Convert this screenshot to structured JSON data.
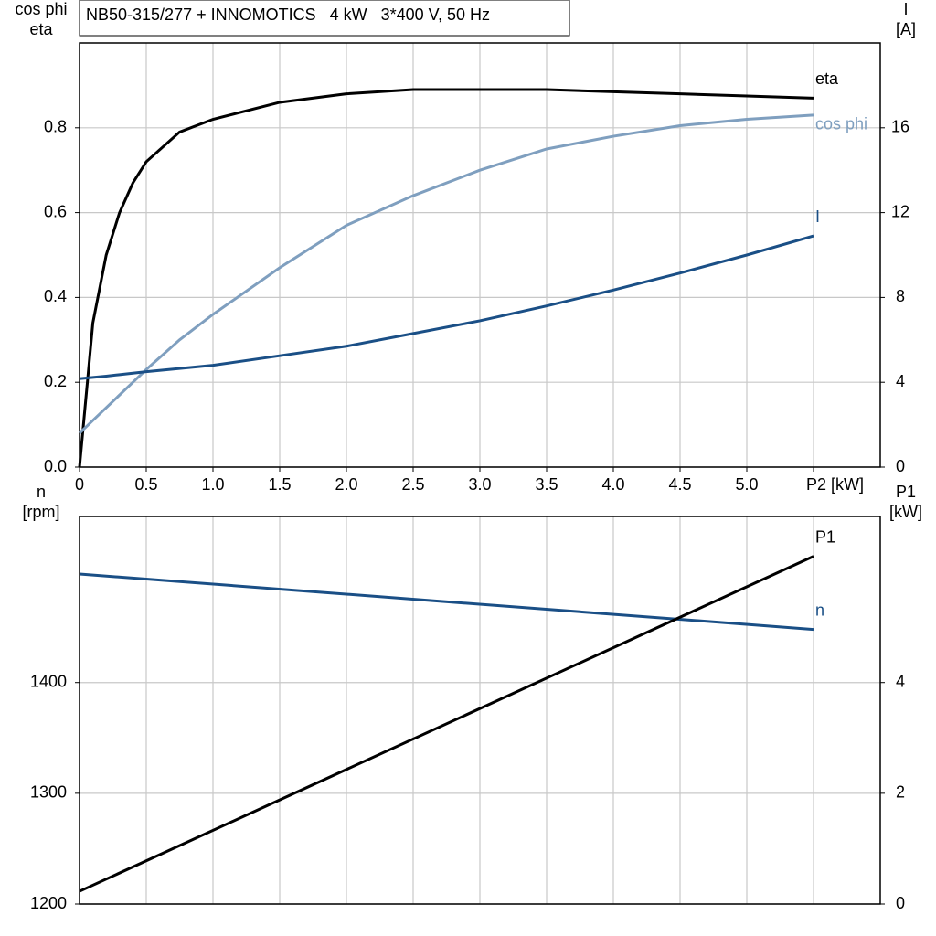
{
  "chart_data": [
    {
      "type": "line",
      "title": "NB50-315/277 + INNOMOTICS   4 kW   3*400 V, 50 Hz",
      "ylabel": [
        "cos phi",
        "eta"
      ],
      "y2label": [
        "I",
        "[A]"
      ],
      "x": [
        0,
        0.1,
        0.2,
        0.3,
        0.4,
        0.5,
        0.75,
        1.0,
        1.5,
        2.0,
        2.5,
        3.0,
        3.5,
        4.0,
        4.5,
        5.0,
        5.5
      ],
      "xlim": [
        0,
        6
      ],
      "xticks": [
        {
          "value": 0,
          "label": "0"
        },
        0.5,
        {
          "value": 1,
          "label": "1.0"
        },
        1.5,
        {
          "value": 2,
          "label": "2.0"
        },
        2.5,
        {
          "value": 3,
          "label": "3.0"
        },
        3.5,
        {
          "value": 4,
          "label": "4.0"
        },
        4.5,
        {
          "value": 5,
          "label": "5.0"
        },
        {
          "value": 5.5,
          "label": "P2 [kW]"
        }
      ],
      "ylim": [
        0,
        1
      ],
      "yticks": [
        {
          "value": 0,
          "label": "0.0"
        },
        0.2,
        0.4,
        0.6,
        0.8
      ],
      "y2lim": [
        0,
        20
      ],
      "y2ticks": [
        0,
        4,
        8,
        12,
        16
      ],
      "grid": true,
      "series": [
        {
          "name": "eta",
          "color": "#000000",
          "values": [
            0,
            0.34,
            0.5,
            0.6,
            0.67,
            0.72,
            0.79,
            0.82,
            0.86,
            0.88,
            0.89,
            0.89,
            0.89,
            0.885,
            0.88,
            0.875,
            0.87
          ]
        },
        {
          "name": "cos phi",
          "color": "#7f9fbf",
          "values": [
            0.08,
            0.11,
            0.14,
            0.17,
            0.2,
            0.23,
            0.3,
            0.36,
            0.47,
            0.57,
            0.64,
            0.7,
            0.75,
            0.78,
            0.805,
            0.82,
            0.83
          ]
        },
        {
          "name": "I",
          "color": "#1a4f86",
          "axis": "y2",
          "values": [
            4.17,
            4.23,
            4.29,
            4.36,
            4.43,
            4.5,
            4.65,
            4.8,
            5.25,
            5.7,
            6.3,
            6.9,
            7.6,
            8.35,
            9.15,
            10.0,
            10.9
          ]
        }
      ]
    },
    {
      "type": "line",
      "ylabel": [
        "n",
        "[rpm]"
      ],
      "y2label": [
        "P1",
        "[kW]"
      ],
      "x": [
        0,
        5.5
      ],
      "xlim": [
        0,
        6
      ],
      "xticks": [
        0,
        0.5,
        1,
        1.5,
        2,
        2.5,
        3,
        3.5,
        4,
        4.5,
        5,
        5.5
      ],
      "ylim": [
        1200,
        1550
      ],
      "yticks": [
        1200,
        1300,
        1400
      ],
      "y2lim": [
        0,
        7
      ],
      "y2ticks": [
        0,
        2,
        4
      ],
      "grid": true,
      "series": [
        {
          "name": "n",
          "color": "#1a4f86",
          "values": [
            1498,
            1448
          ]
        },
        {
          "name": "P1",
          "color": "#000000",
          "axis": "y2",
          "values": [
            0.23,
            6.28
          ]
        }
      ]
    }
  ]
}
